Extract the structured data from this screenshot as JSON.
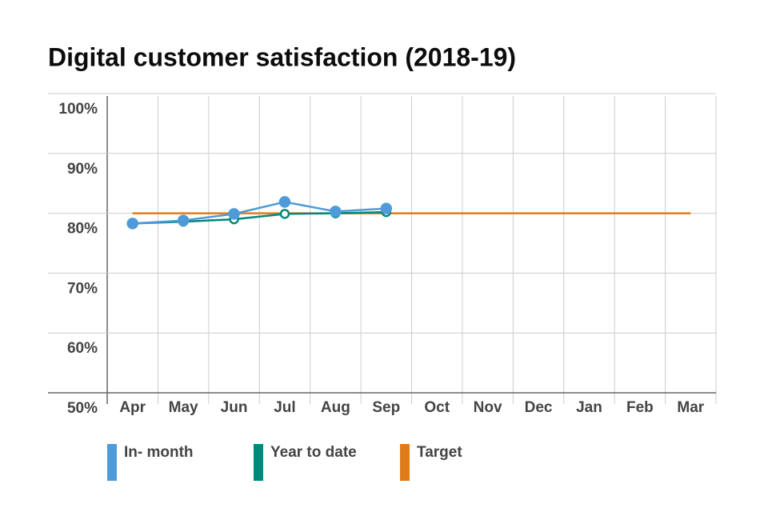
{
  "chart_data": {
    "type": "line",
    "title": "Digital customer satisfaction (2018-19)",
    "categories": [
      "Apr",
      "May",
      "Jun",
      "Jul",
      "Aug",
      "Sep",
      "Oct",
      "Nov",
      "Dec",
      "Jan",
      "Feb",
      "Mar"
    ],
    "series": [
      {
        "name": "In- month",
        "color": "#4f9bd9",
        "marker": "filled",
        "values": [
          78.3,
          78.8,
          79.9,
          81.9,
          80.3,
          80.8,
          null,
          null,
          null,
          null,
          null,
          null
        ]
      },
      {
        "name": "Year to date",
        "color": "#00897b",
        "marker": "hollow",
        "values": [
          78.3,
          78.6,
          79.0,
          79.9,
          80.0,
          80.2,
          null,
          null,
          null,
          null,
          null,
          null
        ]
      },
      {
        "name": "Target",
        "color": "#e07b1a",
        "marker": "none",
        "values": [
          80,
          80,
          80,
          80,
          80,
          80,
          80,
          80,
          80,
          80,
          80,
          80
        ]
      }
    ],
    "ylim": [
      50,
      100
    ],
    "yticks": [
      {
        "value": 50,
        "label": "50%"
      },
      {
        "value": 60,
        "label": "60%"
      },
      {
        "value": 70,
        "label": "70%"
      },
      {
        "value": 80,
        "label": "80%"
      },
      {
        "value": 90,
        "label": "90%"
      },
      {
        "value": 100,
        "label": "100%"
      }
    ],
    "grid": true
  }
}
